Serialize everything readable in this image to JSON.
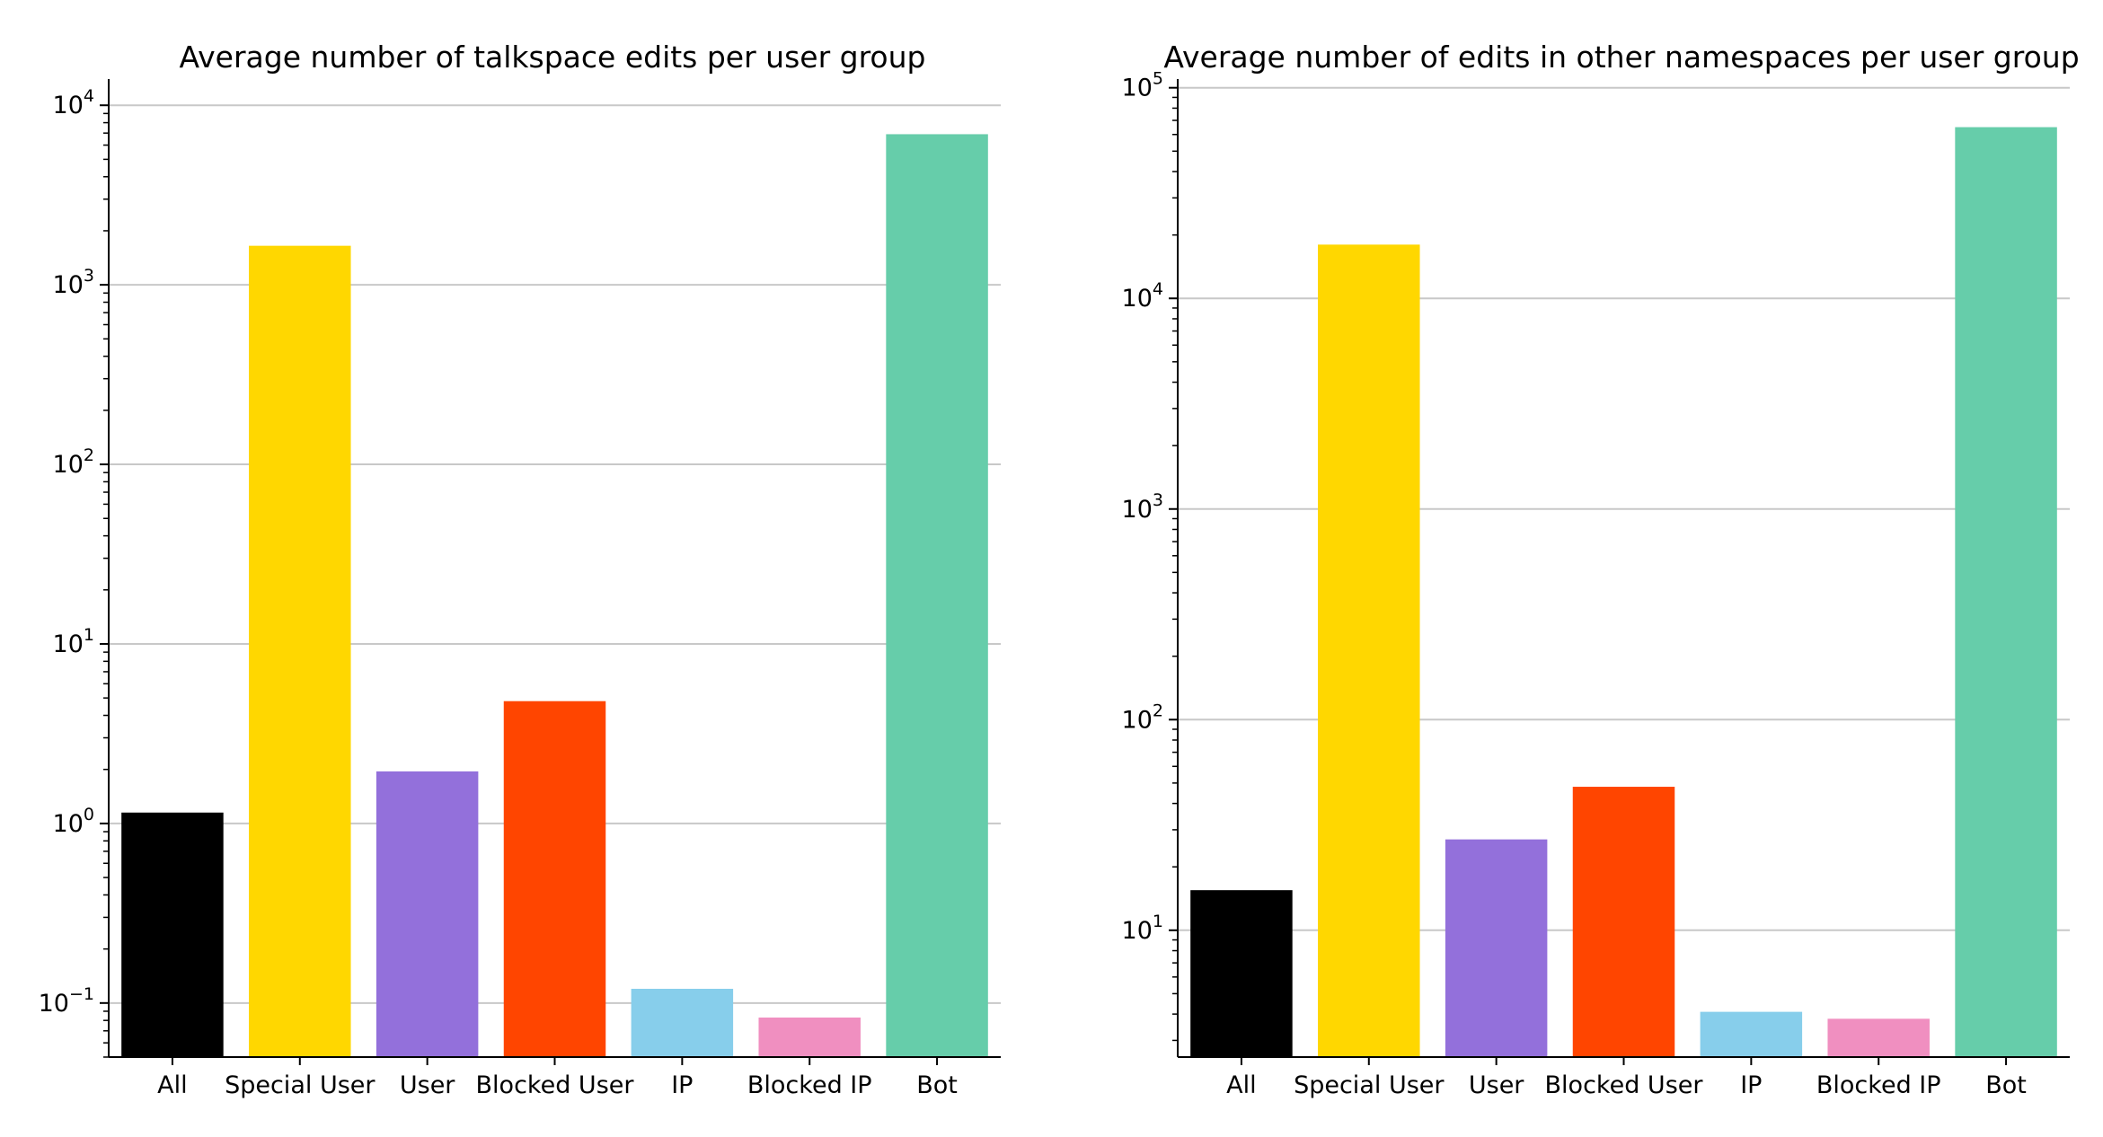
{
  "chart_data": [
    {
      "type": "bar",
      "title": "Average number of talkspace edits per user group",
      "xlabel": "",
      "ylabel": "",
      "yscale": "log",
      "ylim": [
        0.05,
        14000
      ],
      "grid": "horizontal",
      "categories": [
        "All",
        "Special User",
        "User",
        "Blocked User",
        "IP",
        "Blocked IP",
        "Bot"
      ],
      "values": [
        1.15,
        1650,
        1.95,
        4.8,
        0.12,
        0.083,
        6900
      ],
      "colors": [
        "#000000",
        "#FFD700",
        "#9370DB",
        "#FF4500",
        "#87CEEB",
        "#F08FC0",
        "#66CDAA"
      ],
      "y_ticks": [
        {
          "base": "10",
          "exp": "−1",
          "value": 0.1
        },
        {
          "base": "10",
          "exp": "0",
          "value": 1
        },
        {
          "base": "10",
          "exp": "1",
          "value": 10
        },
        {
          "base": "10",
          "exp": "2",
          "value": 100
        },
        {
          "base": "10",
          "exp": "3",
          "value": 1000
        },
        {
          "base": "10",
          "exp": "4",
          "value": 10000
        }
      ]
    },
    {
      "type": "bar",
      "title": "Average number of edits in other namespaces per user group",
      "xlabel": "",
      "ylabel": "",
      "yscale": "log",
      "ylim": [
        2.5,
        110000
      ],
      "grid": "horizontal",
      "categories": [
        "All",
        "Special User",
        "User",
        "Blocked User",
        "IP",
        "Blocked IP",
        "Bot"
      ],
      "values": [
        15.5,
        18000,
        27,
        48,
        4.1,
        3.8,
        65000
      ],
      "colors": [
        "#000000",
        "#FFD700",
        "#9370DB",
        "#FF4500",
        "#87CEEB",
        "#F08FC0",
        "#66CDAA"
      ],
      "y_ticks": [
        {
          "base": "10",
          "exp": "1",
          "value": 10
        },
        {
          "base": "10",
          "exp": "2",
          "value": 100
        },
        {
          "base": "10",
          "exp": "3",
          "value": 1000
        },
        {
          "base": "10",
          "exp": "4",
          "value": 10000
        },
        {
          "base": "10",
          "exp": "5",
          "value": 100000
        }
      ]
    }
  ]
}
